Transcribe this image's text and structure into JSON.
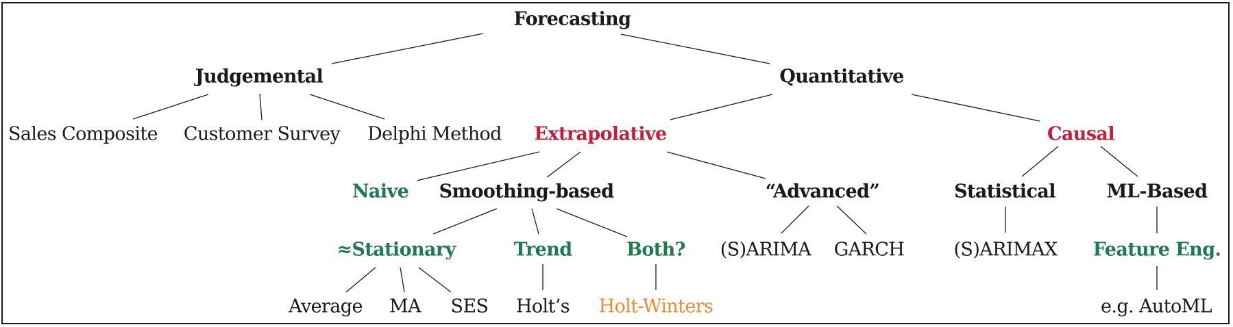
{
  "colors": {
    "default": "#1a1a1a",
    "red": "#c41e3a",
    "green": "#1f7a4d",
    "orange": "#f08a30"
  },
  "nodes": {
    "forecasting": {
      "label": "Forecasting",
      "color": "default",
      "bold": true
    },
    "judgemental": {
      "label": "Judgemental",
      "color": "default",
      "bold": true
    },
    "quantitative": {
      "label": "Quantitative",
      "color": "default",
      "bold": true
    },
    "sales_composite": {
      "label": "Sales Composite",
      "color": "default",
      "bold": false
    },
    "customer_survey": {
      "label": "Customer Survey",
      "color": "default",
      "bold": false
    },
    "delphi_method": {
      "label": "Delphi Method",
      "color": "default",
      "bold": false
    },
    "extrapolative": {
      "label": "Extrapolative",
      "color": "red",
      "bold": true
    },
    "causal": {
      "label": "Causal",
      "color": "red",
      "bold": true
    },
    "naive": {
      "label": "Naive",
      "color": "green",
      "bold": true
    },
    "smoothing_based": {
      "label": "Smoothing-based",
      "color": "default",
      "bold": true
    },
    "advanced": {
      "label": "“Advanced”",
      "color": "default",
      "bold": true
    },
    "statistical": {
      "label": "Statistical",
      "color": "default",
      "bold": true
    },
    "ml_based": {
      "label": "ML-Based",
      "color": "default",
      "bold": true
    },
    "stationary": {
      "label": "≈Stationary",
      "color": "green",
      "bold": true
    },
    "trend": {
      "label": "Trend",
      "color": "green",
      "bold": true
    },
    "both": {
      "label": "Both?",
      "color": "green",
      "bold": true
    },
    "sarima": {
      "label": "(S)ARIMA",
      "color": "default",
      "bold": false
    },
    "garch": {
      "label": "GARCH",
      "color": "default",
      "bold": false
    },
    "sarimax": {
      "label": "(S)ARIMAX",
      "color": "default",
      "bold": false
    },
    "feature_eng": {
      "label": "Feature Eng.",
      "color": "green",
      "bold": true
    },
    "average": {
      "label": "Average",
      "color": "default",
      "bold": false
    },
    "ma": {
      "label": "MA",
      "color": "default",
      "bold": false
    },
    "ses": {
      "label": "SES",
      "color": "default",
      "bold": false
    },
    "holts": {
      "label": "Holt’s",
      "color": "default",
      "bold": false
    },
    "holt_winters": {
      "label": "Holt-Winters",
      "color": "orange",
      "bold": false
    },
    "automl": {
      "label": "e.g. AutoML",
      "color": "default",
      "bold": false
    }
  }
}
